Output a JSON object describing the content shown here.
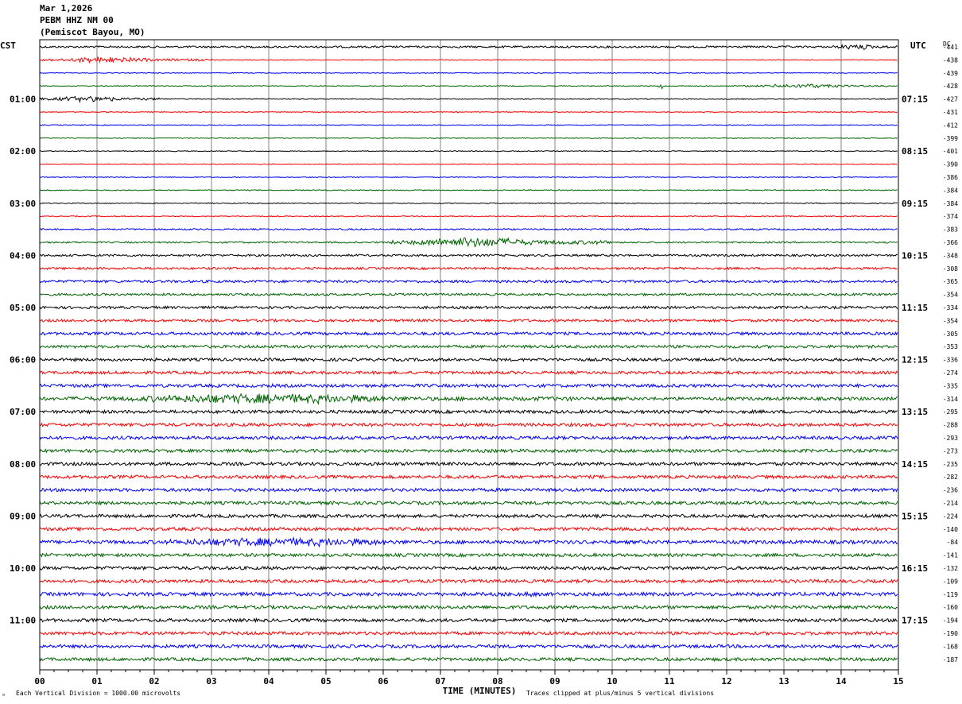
{
  "header": {
    "date": "Mar 1,2026",
    "station": "PEBM HHZ NM 00",
    "location": "(Pemiscot Bayou, MO)"
  },
  "left_timezone": "CST",
  "right_timezone": "UTC",
  "dc_label": "DC",
  "footer": {
    "scale_note": "Each Vertical Division = 1000.00 microvolts",
    "xlabel": "TIME (MINUTES)",
    "clip_note": "Traces clipped at plus/minus 5 vertical divisions"
  },
  "colors": {
    "trace_cycle": [
      "#000000",
      "#ff0000",
      "#0000ff",
      "#006400"
    ],
    "grid": "#808080"
  },
  "chart_data": {
    "type": "line",
    "title": "PEBM HHZ NM 00",
    "xlabel": "TIME (MINUTES)",
    "xlim": [
      0,
      15
    ],
    "x_ticks": [
      "00",
      "01",
      "02",
      "03",
      "04",
      "05",
      "06",
      "07",
      "08",
      "09",
      "10",
      "11",
      "12",
      "13",
      "14",
      "15"
    ],
    "grid": true,
    "left_hour_labels": [
      {
        "row": 4,
        "label": "01:00"
      },
      {
        "row": 8,
        "label": "02:00"
      },
      {
        "row": 12,
        "label": "03:00"
      },
      {
        "row": 16,
        "label": "04:00"
      },
      {
        "row": 20,
        "label": "05:00"
      },
      {
        "row": 24,
        "label": "06:00"
      },
      {
        "row": 28,
        "label": "07:00"
      },
      {
        "row": 32,
        "label": "08:00"
      },
      {
        "row": 36,
        "label": "09:00"
      },
      {
        "row": 40,
        "label": "10:00"
      },
      {
        "row": 44,
        "label": "11:00"
      }
    ],
    "right_hour_labels": [
      {
        "row": 4,
        "label": "07:15"
      },
      {
        "row": 8,
        "label": "08:15"
      },
      {
        "row": 12,
        "label": "09:15"
      },
      {
        "row": 16,
        "label": "10:15"
      },
      {
        "row": 20,
        "label": "11:15"
      },
      {
        "row": 24,
        "label": "12:15"
      },
      {
        "row": 28,
        "label": "13:15"
      },
      {
        "row": 32,
        "label": "14:15"
      },
      {
        "row": 36,
        "label": "15:15"
      },
      {
        "row": 40,
        "label": "16:15"
      },
      {
        "row": 44,
        "label": "17:15"
      }
    ],
    "dc_offsets": [
      "-441",
      "-438",
      "-439",
      "-428",
      "-427",
      "-431",
      "-412",
      "-399",
      "-401",
      "-390",
      "-386",
      "-384",
      "-384",
      "-374",
      "-383",
      "-366",
      "-348",
      "-308",
      "-365",
      "-354",
      "-334",
      "-354",
      "-305",
      "-353",
      "-336",
      "-274",
      "-335",
      "-314",
      "-295",
      "-288",
      "-293",
      "-273",
      "-235",
      "-282",
      "-236",
      "-214",
      "-224",
      "-140",
      "-84",
      "-141",
      "-132",
      "-109",
      "-119",
      "-160",
      "-194",
      "-190",
      "-168",
      "-187"
    ],
    "trace_noise": [
      1.2,
      0.5,
      0.5,
      0.5,
      0.6,
      0.5,
      0.5,
      0.5,
      0.5,
      0.5,
      0.5,
      0.6,
      0.6,
      0.6,
      0.9,
      1.0,
      1.3,
      1.4,
      1.6,
      1.4,
      1.6,
      1.6,
      1.8,
      1.8,
      1.8,
      1.8,
      2.0,
      2.0,
      2.0,
      2.0,
      2.0,
      2.0,
      2.0,
      2.0,
      2.0,
      2.0,
      2.0,
      2.0,
      2.2,
      2.0,
      2.0,
      2.0,
      2.2,
      2.0,
      2.0,
      2.0,
      2.0,
      2.0
    ],
    "events": [
      {
        "row": 0,
        "start_min": 13.8,
        "end_min": 15.0,
        "amplitude": 4
      },
      {
        "row": 1,
        "start_min": 0.0,
        "end_min": 3.0,
        "amplitude": 4
      },
      {
        "row": 3,
        "start_min": 12.3,
        "end_min": 15.0,
        "amplitude": 3
      },
      {
        "row": 3,
        "start_min": 10.8,
        "end_min": 10.95,
        "amplitude": 5
      },
      {
        "row": 4,
        "start_min": 0.0,
        "end_min": 2.2,
        "amplitude": 4
      },
      {
        "row": 15,
        "start_min": 6.1,
        "end_min": 10.0,
        "amplitude": 7
      },
      {
        "row": 27,
        "start_min": 0.5,
        "end_min": 9.5,
        "amplitude": 7
      },
      {
        "row": 38,
        "start_min": 1.0,
        "end_min": 9.3,
        "amplitude": 6
      },
      {
        "row": 42,
        "start_min": 8.3,
        "end_min": 9.0,
        "amplitude": 4
      },
      {
        "row": 36,
        "start_min": 14.1,
        "end_min": 15.0,
        "amplitude": 3
      }
    ]
  }
}
